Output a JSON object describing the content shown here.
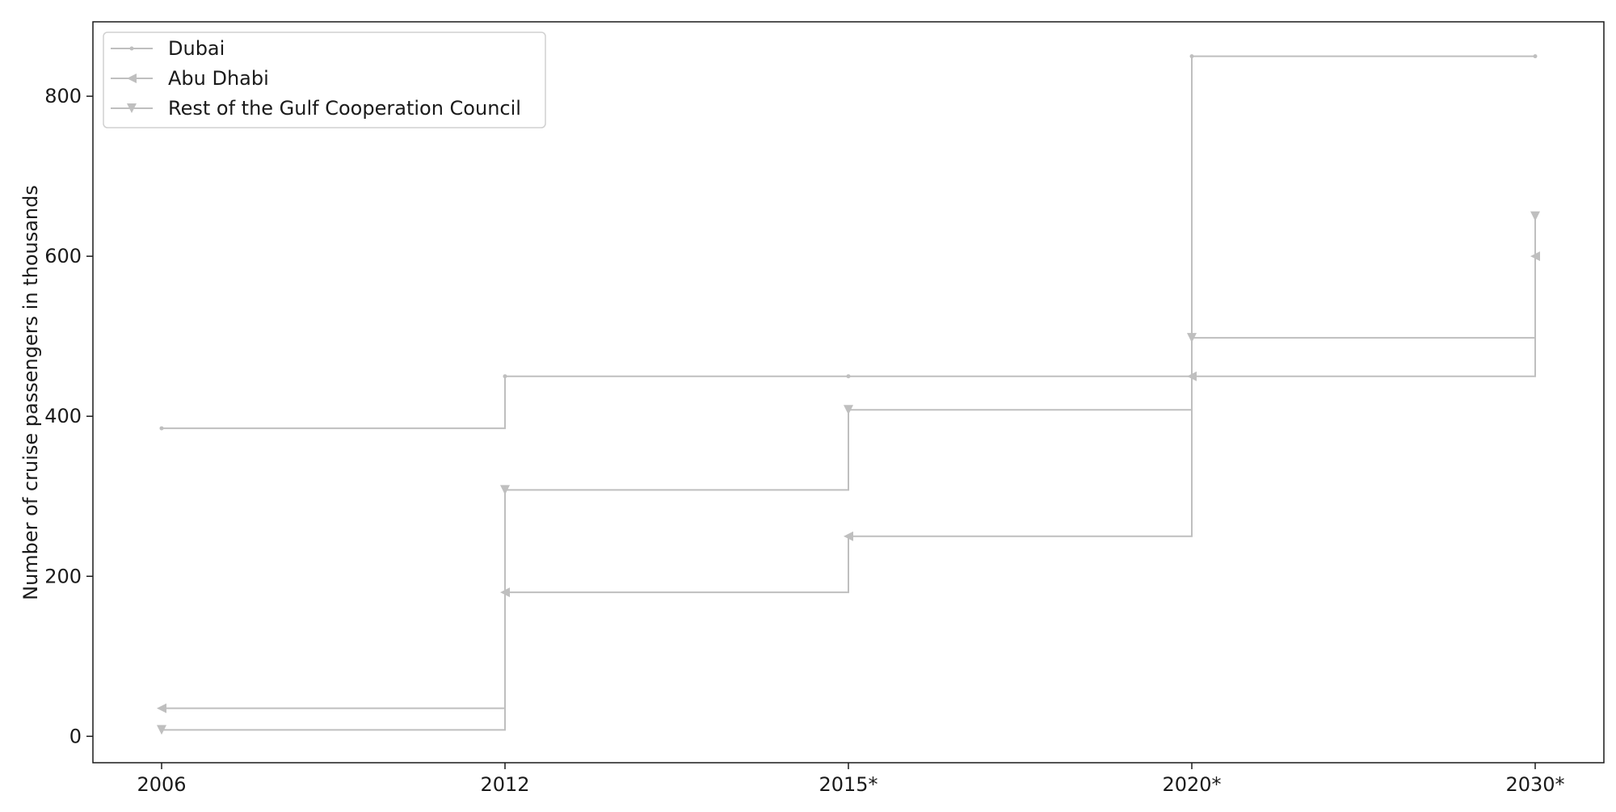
{
  "chart_data": {
    "type": "line",
    "step": "post",
    "categories": [
      "2006",
      "2012",
      "2015*",
      "2020*",
      "2030*"
    ],
    "xlabel": "",
    "ylabel": "Number of cruise passengers in thousands",
    "ylim": [
      -33,
      893
    ],
    "yticks": [
      0,
      200,
      400,
      600,
      800
    ],
    "grid": false,
    "legend_position": "top-left",
    "line_color": "#bfbfbf",
    "series": [
      {
        "name": "Dubai",
        "marker": "point",
        "values": [
          385,
          450,
          450,
          850,
          850
        ]
      },
      {
        "name": "Abu Dhabi",
        "marker": "triangle-left",
        "values": [
          35,
          180,
          250,
          450,
          600
        ]
      },
      {
        "name": "Rest of the Gulf Cooperation Council",
        "marker": "triangle-down",
        "values": [
          8,
          308,
          408,
          498,
          650
        ]
      }
    ]
  }
}
